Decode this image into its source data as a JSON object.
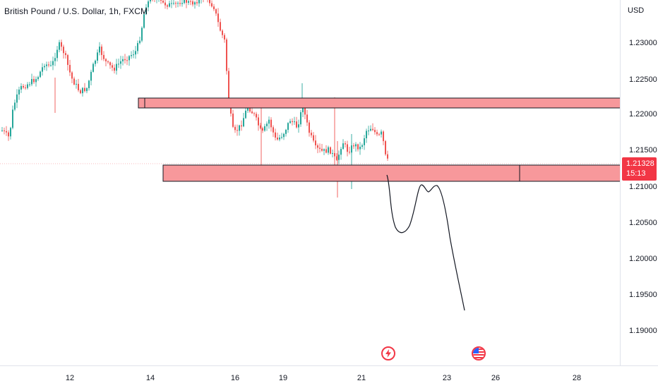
{
  "header": {
    "symbol": "British Pound / U.S. Dollar, 1h, FXCM"
  },
  "price_axis": {
    "currency": "USD",
    "labels": [
      "1.23000",
      "1.22500",
      "1.22000",
      "1.21500",
      "1.21000",
      "1.20500",
      "1.20000",
      "1.19500",
      "1.19000"
    ],
    "current_price": "1.21328",
    "countdown": "15:13"
  },
  "time_axis": {
    "labels": [
      "12",
      "14",
      "16",
      "19",
      "21",
      "23",
      "26",
      "28"
    ]
  },
  "events": {
    "lightning_icon": "lightning-icon",
    "flag_icon": "us-flag-icon"
  },
  "colors": {
    "bull": "#26a69a",
    "bear": "#ef5350",
    "zone_fill": "#f7989b",
    "zone_border": "#131722",
    "badge": "#f23645"
  }
}
